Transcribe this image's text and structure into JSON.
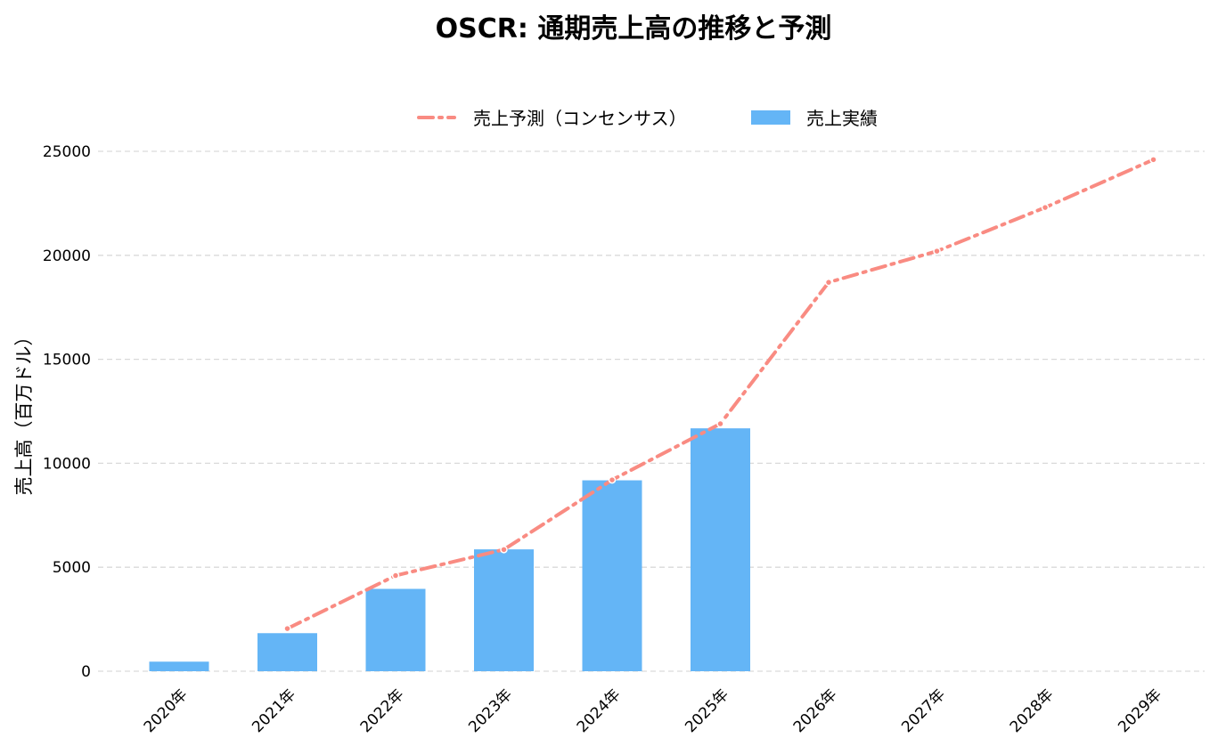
{
  "chart_data": {
    "type": "bar",
    "title": "OSCR: 通期売上高の推移と予測",
    "xlabel": "",
    "ylabel": "売上高（百万ドル）",
    "categories": [
      "2020年",
      "2021年",
      "2022年",
      "2023年",
      "2024年",
      "2025年",
      "2026年",
      "2027年",
      "2028年",
      "2029年"
    ],
    "ylim": [
      0,
      26000
    ],
    "yticks": [
      0,
      5000,
      10000,
      15000,
      20000,
      25000
    ],
    "grid": true,
    "legend_position": "top-center",
    "series": [
      {
        "name": "売上予測（コンセンサス）",
        "type": "line",
        "style": "dash-dot",
        "color": "#f98b82",
        "values": [
          null,
          2050,
          4600,
          5850,
          9200,
          11900,
          18700,
          20200,
          22300,
          24600
        ]
      },
      {
        "name": "売上実績",
        "type": "bar",
        "color": "#64b5f6",
        "values": [
          460,
          1830,
          3960,
          5860,
          9180,
          11680,
          null,
          null,
          null,
          null
        ]
      }
    ]
  }
}
